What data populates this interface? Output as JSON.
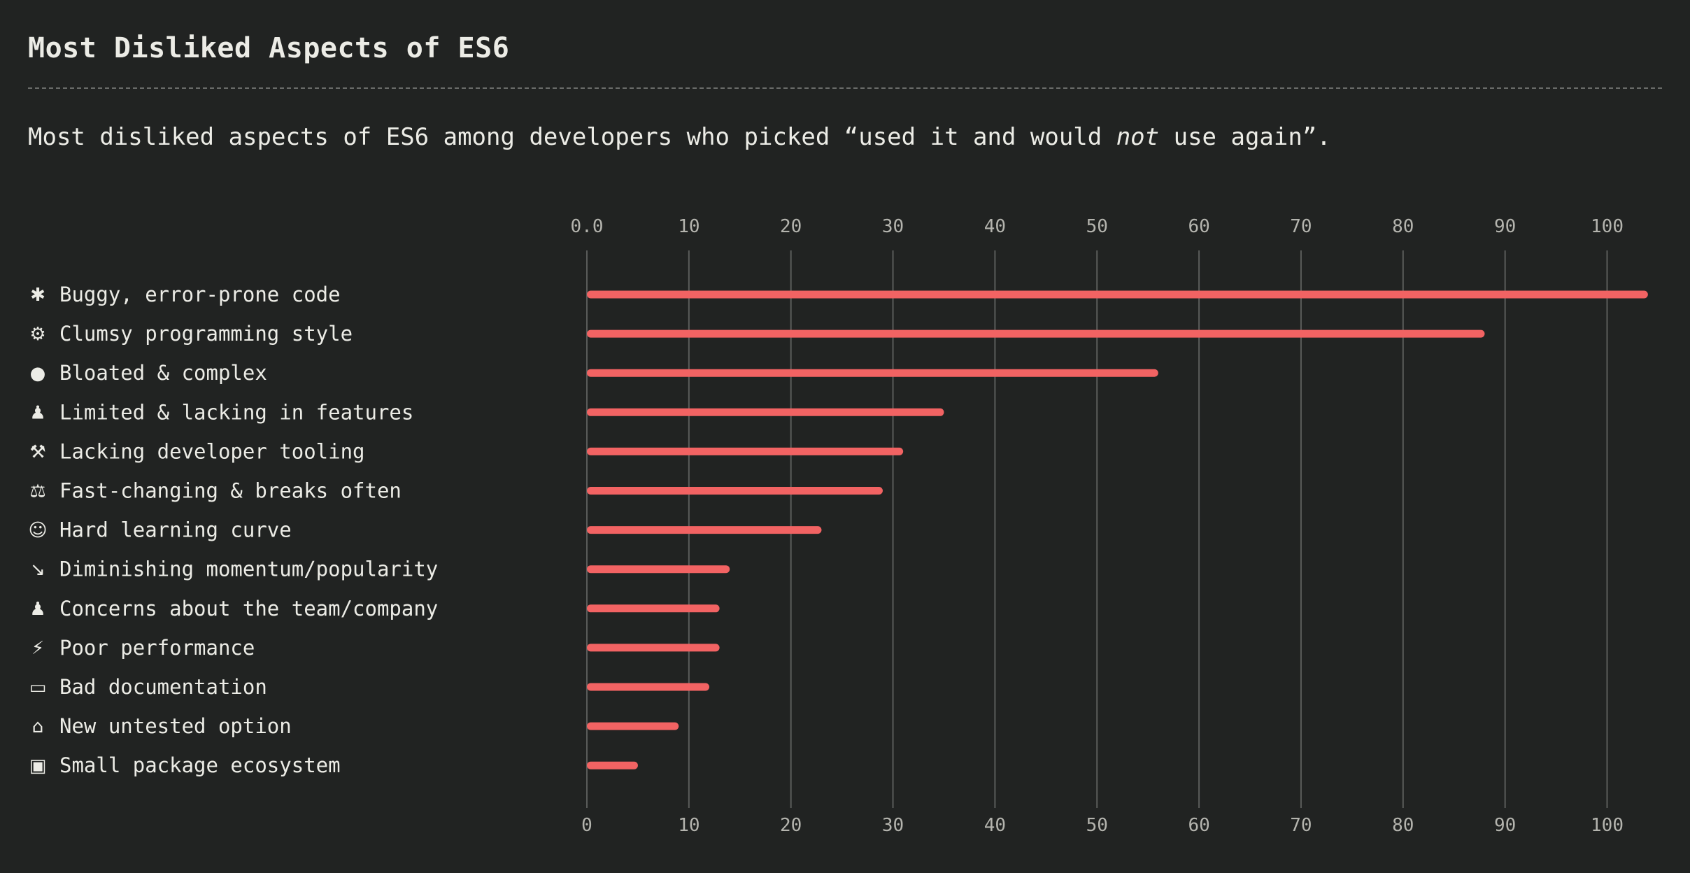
{
  "header": {
    "title": "Most Disliked Aspects of ES6",
    "subtitle_before": "Most disliked aspects of ES6 among developers who picked “used it and would ",
    "subtitle_emphasis": "not",
    "subtitle_after": " use again”."
  },
  "colors": {
    "bar": "#f26363",
    "grid": "#5a5c5a"
  },
  "chart_data": {
    "type": "bar",
    "orientation": "horizontal",
    "title": "Most Disliked Aspects of ES6",
    "xlim": [
      0,
      104
    ],
    "top_ticks": [
      "0.0",
      "10",
      "20",
      "30",
      "40",
      "50",
      "60",
      "70",
      "80",
      "90",
      "100"
    ],
    "bottom_ticks": [
      "0",
      "10",
      "20",
      "30",
      "40",
      "50",
      "60",
      "70",
      "80",
      "90",
      "100"
    ],
    "tick_values": [
      0,
      10,
      20,
      30,
      40,
      50,
      60,
      70,
      80,
      90,
      100
    ],
    "grid": true,
    "categories": [
      {
        "label": "Buggy, error-prone code",
        "icon": "bug-icon",
        "glyph": "✱",
        "glyph_color": "#e05050",
        "value": 104
      },
      {
        "label": "Clumsy programming style",
        "icon": "gear-icon",
        "glyph": "⚙",
        "glyph_color": "#c8c8c8",
        "value": 88
      },
      {
        "label": "Bloated & complex",
        "icon": "balloon-icon",
        "glyph": "●",
        "glyph_color": "#e23a3a",
        "value": 56
      },
      {
        "label": "Limited & lacking in features",
        "icon": "joystick-icon",
        "glyph": "♟",
        "glyph_color": "#d04a4a",
        "value": 35
      },
      {
        "label": "Lacking developer tooling",
        "icon": "wrench-icon",
        "glyph": "⚒",
        "glyph_color": "#b8b8b8",
        "value": 31
      },
      {
        "label": "Fast-changing & breaks often",
        "icon": "scales-icon",
        "glyph": "⚖",
        "glyph_color": "#c8c8c8",
        "value": 29
      },
      {
        "label": "Hard learning curve",
        "icon": "baby-icon",
        "glyph": "☺",
        "glyph_color": "#f5c542",
        "value": 23
      },
      {
        "label": "Diminishing momentum/popularity",
        "icon": "chart-decreasing-icon",
        "glyph": "↘",
        "glyph_color": "#6aa2e0",
        "value": 14
      },
      {
        "label": "Concerns about the team/company",
        "icon": "people-holding-hands-icon",
        "glyph": "♟",
        "glyph_color": "#e0a040",
        "value": 13
      },
      {
        "label": "Poor performance",
        "icon": "lightning-icon",
        "glyph": "⚡",
        "glyph_color": "#f5c518",
        "value": 13
      },
      {
        "label": "Bad documentation",
        "icon": "open-book-icon",
        "glyph": "▭",
        "glyph_color": "#8ab4e8",
        "value": 12
      },
      {
        "label": "New untested option",
        "icon": "classical-building-icon",
        "glyph": "⌂",
        "glyph_color": "#d8d8d0",
        "value": 9
      },
      {
        "label": "Small package ecosystem",
        "icon": "gift-icon",
        "glyph": "▣",
        "glyph_color": "#e8a030",
        "value": 5
      }
    ]
  }
}
